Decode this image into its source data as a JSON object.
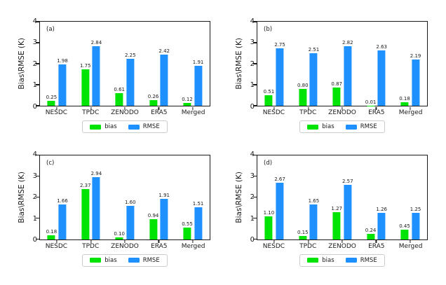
{
  "figure": {
    "background": "#ffffff",
    "axis_color": "#1a1a1a"
  },
  "colors": {
    "bias": "#00e405",
    "rmse": "#1e90ff"
  },
  "legend": {
    "bias_label": "bias",
    "rmse_label": "RMSE"
  },
  "chart_data": [
    {
      "type": "bar",
      "panel_label": "(a)",
      "ylabel": "Bias\\RMSE (K)",
      "ylim": [
        0,
        4
      ],
      "yticks": [
        0,
        1,
        2,
        3,
        4
      ],
      "categories": [
        "NESDC",
        "TPDC",
        "ZENODO",
        "ERA5",
        "Merged"
      ],
      "series": [
        {
          "name": "bias",
          "color": "#00e405",
          "values": [
            0.25,
            1.75,
            0.61,
            0.26,
            0.12
          ]
        },
        {
          "name": "RMSE",
          "color": "#1e90ff",
          "values": [
            1.98,
            2.84,
            2.25,
            2.42,
            1.91
          ]
        }
      ],
      "legend_position": "bottom",
      "grid": false
    },
    {
      "type": "bar",
      "panel_label": "(b)",
      "ylabel": "Bias\\RMSE (K)",
      "ylim": [
        0,
        4
      ],
      "yticks": [
        0,
        1,
        2,
        3,
        4
      ],
      "categories": [
        "NESDC",
        "TPDC",
        "ZENODO",
        "ERA5",
        "Merged"
      ],
      "series": [
        {
          "name": "bias",
          "color": "#00e405",
          "values": [
            0.51,
            0.8,
            0.87,
            0.01,
            0.18
          ]
        },
        {
          "name": "RMSE",
          "color": "#1e90ff",
          "values": [
            2.75,
            2.51,
            2.82,
            2.63,
            2.19
          ]
        }
      ],
      "legend_position": "bottom",
      "grid": false
    },
    {
      "type": "bar",
      "panel_label": "(c)",
      "ylabel": "Bias\\RMSE (K)",
      "ylim": [
        0,
        4
      ],
      "yticks": [
        0,
        1,
        2,
        3,
        4
      ],
      "categories": [
        "NESDC",
        "TPDC",
        "ZENODO",
        "ERA5",
        "Merged"
      ],
      "series": [
        {
          "name": "bias",
          "color": "#00e405",
          "values": [
            0.18,
            2.37,
            0.1,
            0.94,
            0.55
          ]
        },
        {
          "name": "RMSE",
          "color": "#1e90ff",
          "values": [
            1.66,
            2.94,
            1.6,
            1.91,
            1.51
          ]
        }
      ],
      "legend_position": "bottom",
      "grid": false
    },
    {
      "type": "bar",
      "panel_label": "(d)",
      "ylabel": "Bias\\RMSE (K)",
      "ylim": [
        0,
        4
      ],
      "yticks": [
        0,
        1,
        2,
        3,
        4
      ],
      "categories": [
        "NESDC",
        "TPDC",
        "ZENODO",
        "ERA5",
        "Merged"
      ],
      "series": [
        {
          "name": "bias",
          "color": "#00e405",
          "values": [
            1.1,
            0.15,
            1.27,
            0.24,
            0.45
          ]
        },
        {
          "name": "RMSE",
          "color": "#1e90ff",
          "values": [
            2.67,
            1.65,
            2.57,
            1.26,
            1.25
          ]
        }
      ],
      "legend_position": "bottom",
      "grid": false
    }
  ]
}
